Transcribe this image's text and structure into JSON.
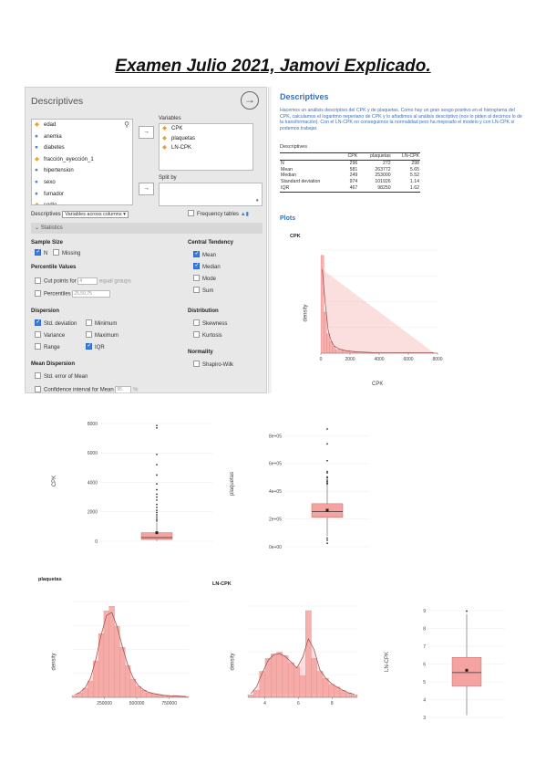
{
  "doc_title": "Examen Julio 2021, Jamovi Explicado.",
  "panel": {
    "title": "Descriptives",
    "variable_list": [
      {
        "name": "edad",
        "type": "cont"
      },
      {
        "name": "anemia",
        "type": "nom"
      },
      {
        "name": "diabetes",
        "type": "nom"
      },
      {
        "name": "fracción_eyección_1",
        "type": "cont"
      },
      {
        "name": "hipertension",
        "type": "nom"
      },
      {
        "name": "sexo",
        "type": "nom"
      },
      {
        "name": "fumador",
        "type": "nom"
      },
      {
        "name": "sodio",
        "type": "cont"
      },
      {
        "name": "colesterol",
        "type": "cont"
      }
    ],
    "variables_label": "Variables",
    "selected_variables": [
      "CPK",
      "plaquetas",
      "LN-CPK"
    ],
    "split_by_label": "Split by",
    "descriptives_label": "Descriptives",
    "descriptives_select": "Variables across columns",
    "frequency_tables_label": "Frequency tables",
    "statistics_label": "Statistics",
    "sample_size": {
      "title": "Sample Size",
      "n": "N",
      "missing": "Missing"
    },
    "percentile_values": {
      "title": "Percentile Values",
      "cut_points_label": "Cut points for",
      "cut_points_value": "4",
      "cut_points_suffix": "equal groups",
      "percentiles_label": "Percentiles",
      "percentiles_value": "25,50,75"
    },
    "dispersion": {
      "title": "Dispersion",
      "std_deviation": "Std. deviation",
      "minimum": "Minimum",
      "variance": "Variance",
      "maximum": "Maximum",
      "range": "Range",
      "iqr": "IQR"
    },
    "mean_dispersion": {
      "title": "Mean Dispersion",
      "std_error": "Std. error of Mean",
      "ci_label": "Confidence interval for Mean",
      "ci_value": "95",
      "ci_unit": "%"
    },
    "central_tendency": {
      "title": "Central Tendency",
      "mean": "Mean",
      "median": "Median",
      "mode": "Mode",
      "sum": "Sum"
    },
    "distribution": {
      "title": "Distribution",
      "skewness": "Skewness",
      "kurtosis": "Kurtosis"
    },
    "normality": {
      "title": "Normality",
      "shapiro": "Shapiro-Wilk"
    }
  },
  "results": {
    "title": "Descriptives",
    "note": "Hacemos un análisis descriptivo del CPK y de plaquetas. Como hay un gran sesgo positivo en el histograma del CPK, calculamos el logaritmo neperiano de CPK y lo añadimos al análisis descriptivo (nos lo piden al decirnos lo de la transformación). Con el LN-CPK no conseguimos la normalidad pero ha mejorado el modelo y con LN-CPK sí podemos trabajar.",
    "table_caption": "Descriptives",
    "columns": [
      "",
      "CPK",
      "plaquetas",
      "LN-CPK"
    ],
    "rows": [
      [
        "N",
        "296",
        "272",
        "298"
      ],
      [
        "Mean",
        "581",
        "263772",
        "5.65"
      ],
      [
        "Median",
        "249",
        "253000",
        "5.52"
      ],
      [
        "Standard deviation",
        "974",
        "101926",
        "1.14"
      ],
      [
        "IQR",
        "467",
        "98250",
        "1.62"
      ]
    ],
    "plots_label": "Plots"
  },
  "chart_data": [
    {
      "type": "bar",
      "title": "CPK",
      "xlabel": "CPK",
      "ylabel": "density",
      "x_ticks": [
        "0",
        "2000",
        "4000",
        "6000",
        "8000"
      ],
      "xlim": [
        0,
        8000
      ],
      "bins": [
        {
          "x0": 0,
          "x1": 200,
          "density": 1.0
        },
        {
          "x0": 200,
          "x1": 400,
          "density": 0.42
        },
        {
          "x0": 400,
          "x1": 600,
          "density": 0.2
        },
        {
          "x0": 600,
          "x1": 800,
          "density": 0.12
        },
        {
          "x0": 800,
          "x1": 1000,
          "density": 0.07
        },
        {
          "x0": 1000,
          "x1": 1500,
          "density": 0.04
        },
        {
          "x0": 1500,
          "x1": 2000,
          "density": 0.025
        },
        {
          "x0": 2000,
          "x1": 3000,
          "density": 0.012
        },
        {
          "x0": 3000,
          "x1": 4000,
          "density": 0.006
        },
        {
          "x0": 7500,
          "x1": 8000,
          "density": 0.004
        }
      ],
      "colors": {
        "fill": "#f4a3a0",
        "line": "#9a4a48"
      }
    },
    {
      "type": "box",
      "title": "",
      "ylabel": "CPK",
      "y_ticks": [
        "0",
        "2000",
        "4000",
        "6000",
        "8000"
      ],
      "ylim": [
        0,
        8000
      ],
      "box": {
        "q1": 116,
        "median": 249,
        "q3": 582,
        "lower": 23,
        "upper": 1280,
        "mean": 581
      },
      "outliers": [
        1380,
        1500,
        1650,
        1800,
        1950,
        2100,
        2300,
        2500,
        2800,
        3000,
        3200,
        3500,
        3900,
        4500,
        5200,
        5900,
        7700,
        7861
      ]
    },
    {
      "type": "box",
      "title": "",
      "ylabel": "plaquetas",
      "y_ticks": [
        "0e+00",
        "2e+05",
        "4e+05",
        "6e+05",
        "8e+05"
      ],
      "ylim": [
        0,
        850000
      ],
      "box": {
        "q1": 212500,
        "median": 253000,
        "q3": 310750,
        "lower": 76000,
        "upper": 448000,
        "mean": 263772
      },
      "outliers": [
        25100,
        47000,
        62000,
        454000,
        460000,
        470000,
        481000,
        497000,
        504000,
        533000,
        543000,
        621000,
        742000,
        850000
      ]
    },
    {
      "type": "bar",
      "title": "plaquetas",
      "ylabel": "density",
      "x_ticks": [
        "250000",
        "500000",
        "750000"
      ],
      "xlim": [
        0,
        900000
      ],
      "values": [
        0.02,
        0.05,
        0.1,
        0.18,
        0.4,
        0.7,
        0.95,
        1.0,
        0.78,
        0.55,
        0.35,
        0.2,
        0.12,
        0.08,
        0.05,
        0.04,
        0.03,
        0.02,
        0.015,
        0.02,
        0.01,
        0.01
      ],
      "colors": {
        "fill": "#f4a3a0",
        "line": "#9a4a48"
      }
    },
    {
      "type": "bar",
      "title": "LN-CPK",
      "ylabel": "density",
      "x_ticks": [
        "4",
        "6",
        "8"
      ],
      "xlim": [
        3,
        9.5
      ],
      "values": [
        0.03,
        0.08,
        0.3,
        0.45,
        0.5,
        0.52,
        0.48,
        0.4,
        0.35,
        0.25,
        1.0,
        0.45,
        0.3,
        0.22,
        0.15,
        0.12,
        0.08,
        0.05,
        0.03
      ],
      "colors": {
        "fill": "#f4a3a0",
        "line": "#9a4a48"
      }
    },
    {
      "type": "box",
      "title": "",
      "ylabel": "LN-CPK",
      "y_ticks": [
        "3",
        "4",
        "5",
        "6",
        "7",
        "8",
        "9"
      ],
      "ylim": [
        3,
        9
      ],
      "box": {
        "q1": 4.75,
        "median": 5.52,
        "q3": 6.37,
        "lower": 3.13,
        "upper": 8.8,
        "mean": 5.65
      },
      "outliers": [
        8.97
      ]
    }
  ]
}
